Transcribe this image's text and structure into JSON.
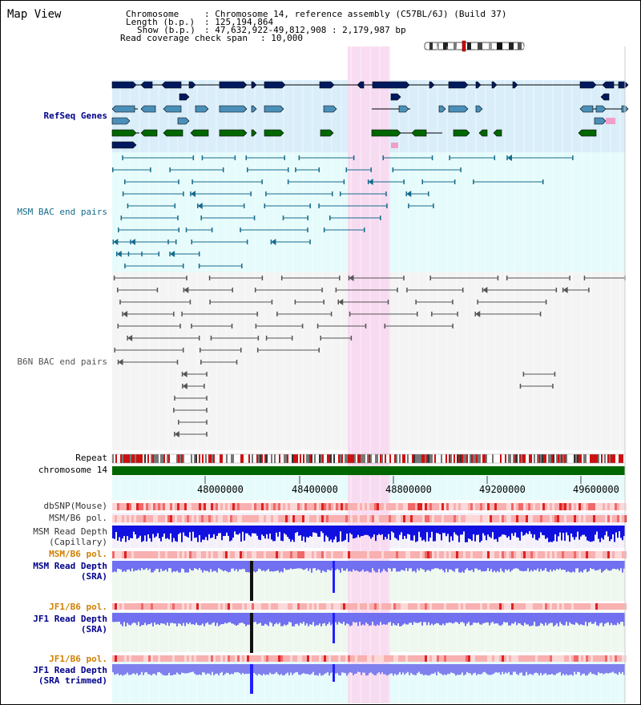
{
  "window": {
    "title": "Map View"
  },
  "info": {
    "chromosome_key": "Chromosome",
    "chromosome_val": ": Chromosome 14, reference assembly (C57BL/6J) (Build 37)",
    "length_key": "Length (b.p.)",
    "length_val": ": 125,194,864",
    "show_key": "Show (b.p.)",
    "show_val": ": 47,632,922-49,812,908 : 2,179,987 bp",
    "coverage_key": "Read coverage check span",
    "coverage_val": ": 10,000"
  },
  "tracks": {
    "refseq": "RefSeq Genes",
    "msm_bac": "MSM BAC end pairs",
    "b6n_bac": "B6N BAC end pairs",
    "repeat": "Repeat",
    "chromosome": "chromosome 14",
    "dbsnp": "dbSNP(Mouse)",
    "msm_b6_pol_1": "MSM/B6 pol.",
    "msm_read_depth_cap_1": "MSM Read Depth",
    "msm_read_depth_cap_2": "(Capillary)",
    "msm_b6_pol_2": "MSM/B6 pol.",
    "msm_read_depth_sra_1": "MSM Read Depth",
    "msm_read_depth_sra_2": "(SRA)",
    "jf1_b6_pol_1": "JF1/B6 pol.",
    "jf1_read_depth_sra_1": "JF1 Read Depth",
    "jf1_read_depth_sra_2": "(SRA)",
    "jf1_b6_pol_2": "JF1/B6 pol.",
    "jf1_read_depth_trim_1": "JF1 Read Depth",
    "jf1_read_depth_trim_2": "(SRA trimmed)"
  },
  "axis": {
    "ticks": [
      "48000000",
      "48400000",
      "48800000",
      "49200000",
      "49600000"
    ]
  },
  "colors": {
    "navy": "#001a5e",
    "gene_blue": "#4a8fb8",
    "gene_green": "#006600",
    "teal": "#156b8c",
    "gray_pair": "#555555",
    "highlight": "#f8d8f0",
    "depth_blue": "#0000ee",
    "depth_light": "#7070f0",
    "orange_label": "#d08000"
  }
}
